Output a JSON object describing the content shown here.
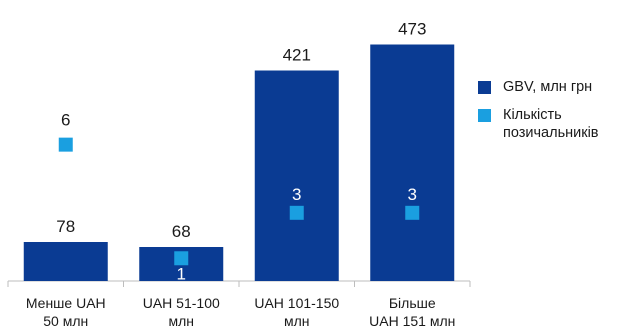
{
  "chart_data": {
    "type": "bar",
    "categories": [
      "Менше UAH 50 млн",
      "UAH 51-100 млн",
      "UAH 101-150 млн",
      "Більше UAH 151 млн"
    ],
    "category_lines": [
      [
        "Менше UAH",
        "50 млн"
      ],
      [
        "UAH 51-100",
        "млн"
      ],
      [
        "UAH 101-150",
        "млн"
      ],
      [
        "Більше",
        "UAH 151 млн"
      ]
    ],
    "series": [
      {
        "name": "GBV, млн грн",
        "kind": "bar",
        "values": [
          78,
          68,
          421,
          473
        ],
        "color": "#0a3b93"
      },
      {
        "name": "Кількість позичальників",
        "kind": "marker",
        "values": [
          6,
          1,
          3,
          3
        ],
        "color": "#1a9fe0"
      }
    ],
    "bar_ylim": [
      0,
      500
    ],
    "marker_ylim": [
      0,
      11
    ],
    "label_color_on_bar": "#ffffff",
    "label_color": "#1a1a1a",
    "legend": {
      "position": "right",
      "items": [
        {
          "lines": [
            "GBV, млн грн"
          ],
          "color": "#0a3b93"
        },
        {
          "lines": [
            "Кількість",
            "позичальників"
          ],
          "color": "#1a9fe0"
        }
      ]
    },
    "grid": false
  }
}
